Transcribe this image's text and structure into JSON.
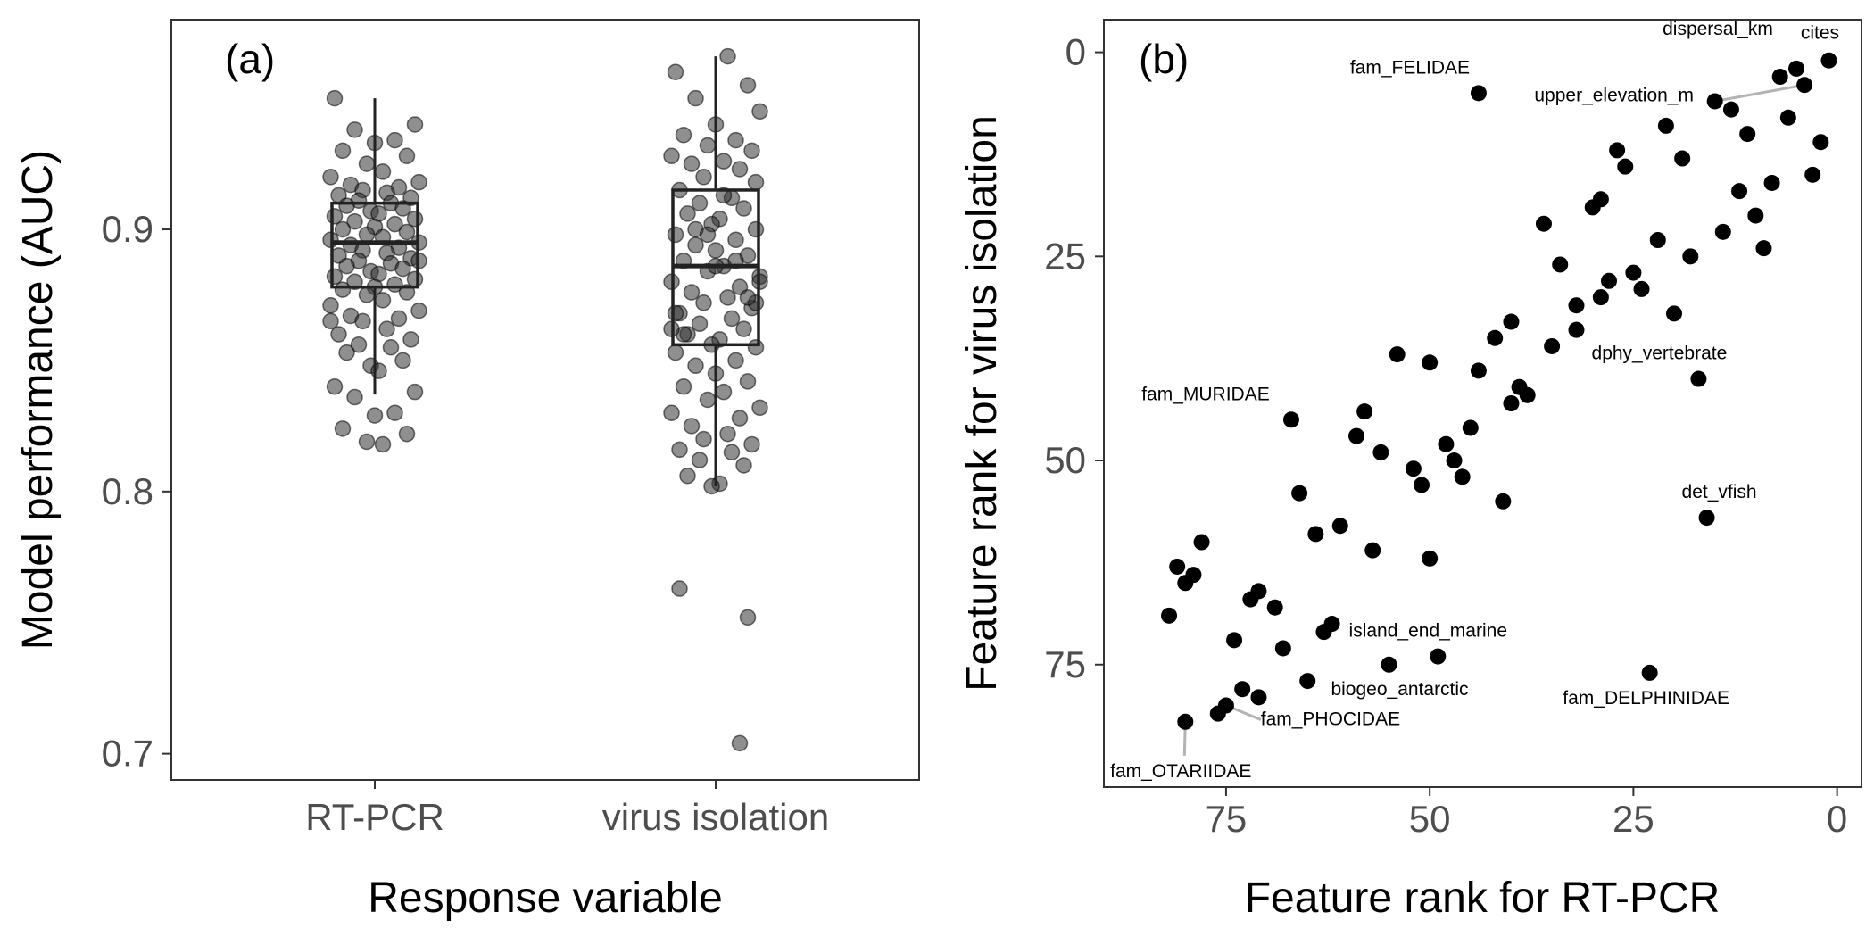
{
  "figure": {
    "colors": {
      "point_a": "#333333",
      "point_b": "#000000",
      "box": "#222222",
      "leader": "#b3b3b3",
      "tick": "#4d4d4d"
    }
  },
  "chart_data": [
    {
      "type": "box+jitter",
      "panel_label": "(a)",
      "xlabel": "Response variable",
      "ylabel": "Model performance (AUC)",
      "categories": [
        "RT-PCR",
        "virus isolation"
      ],
      "ylim": [
        0.69,
        0.98
      ],
      "yticks": [
        0.7,
        0.8,
        0.9
      ],
      "ytick_labels": [
        "0.7",
        "0.8",
        "0.9"
      ],
      "grid": false,
      "boxes": [
        {
          "category": "RT-PCR",
          "q1": 0.878,
          "median": 0.895,
          "q3": 0.91,
          "whisker_low": 0.837,
          "whisker_high": 0.95
        },
        {
          "category": "virus isolation",
          "q1": 0.856,
          "median": 0.886,
          "q3": 0.915,
          "whisker_low": 0.802,
          "whisker_high": 0.966
        }
      ],
      "points": [
        {
          "category": "RT-PCR",
          "offsets": [
            -0.1,
            0.1,
            -0.05,
            0.05,
            0.0,
            -0.08,
            0.08,
            -0.02,
            0.02,
            -0.11,
            0.11,
            -0.06,
            0.06,
            -0.03,
            0.03,
            -0.09,
            0.09,
            -0.04,
            0.04,
            -0.07,
            0.07,
            -0.01,
            0.01,
            -0.1,
            0.1,
            -0.05,
            0.05,
            0.0,
            -0.08,
            0.08,
            -0.02,
            0.02,
            -0.11,
            0.11,
            -0.06,
            0.06,
            -0.03,
            0.03,
            -0.09,
            0.09,
            -0.04,
            0.04,
            -0.07,
            0.07,
            -0.01,
            0.01,
            -0.1,
            0.1,
            -0.05,
            0.05,
            0.0,
            -0.08,
            0.08,
            -0.02,
            0.02,
            -0.11,
            0.11,
            -0.06,
            0.06,
            -0.03,
            0.03,
            -0.09,
            0.09,
            -0.04,
            0.04,
            -0.07,
            0.07,
            -0.01,
            0.01,
            -0.1,
            0.1,
            -0.05,
            0.05,
            0.0,
            -0.08,
            0.08,
            -0.02,
            0.02,
            -0.11,
            0.11
          ],
          "values": [
            0.95,
            0.94,
            0.938,
            0.934,
            0.933,
            0.93,
            0.928,
            0.925,
            0.922,
            0.92,
            0.918,
            0.917,
            0.916,
            0.915,
            0.914,
            0.913,
            0.912,
            0.911,
            0.91,
            0.909,
            0.908,
            0.907,
            0.906,
            0.905,
            0.904,
            0.903,
            0.902,
            0.901,
            0.9,
            0.899,
            0.898,
            0.897,
            0.896,
            0.895,
            0.894,
            0.893,
            0.892,
            0.891,
            0.89,
            0.889,
            0.888,
            0.887,
            0.886,
            0.885,
            0.884,
            0.883,
            0.882,
            0.881,
            0.88,
            0.879,
            0.878,
            0.877,
            0.876,
            0.875,
            0.873,
            0.871,
            0.869,
            0.867,
            0.866,
            0.865,
            0.862,
            0.86,
            0.858,
            0.856,
            0.855,
            0.853,
            0.85,
            0.848,
            0.846,
            0.84,
            0.838,
            0.836,
            0.83,
            0.829,
            0.824,
            0.822,
            0.819,
            0.818,
            0.865,
            0.888
          ]
        },
        {
          "category": "virus isolation",
          "offsets": [
            0.03,
            -0.1,
            0.08,
            -0.05,
            0.11,
            0.0,
            -0.08,
            0.05,
            -0.02,
            0.09,
            -0.11,
            0.02,
            -0.06,
            0.06,
            -0.03,
            0.1,
            -0.09,
            0.04,
            -0.04,
            0.07,
            -0.07,
            0.01,
            -0.01,
            0.1,
            -0.1,
            0.05,
            -0.05,
            0.0,
            0.08,
            -0.08,
            0.02,
            -0.02,
            0.11,
            -0.11,
            0.06,
            -0.06,
            0.03,
            -0.03,
            0.09,
            -0.09,
            0.04,
            -0.04,
            0.07,
            -0.07,
            0.01,
            -0.01,
            0.1,
            -0.1,
            0.05,
            -0.05,
            0.0,
            0.08,
            -0.08,
            0.02,
            -0.02,
            0.11,
            -0.11,
            0.06,
            -0.06,
            0.03,
            -0.03,
            0.09,
            -0.09,
            0.04,
            -0.04,
            0.07,
            -0.07,
            0.01,
            -0.01,
            0.1,
            -0.1,
            0.05,
            -0.05,
            0.0,
            0.08,
            -0.08,
            0.02,
            -0.02,
            0.11,
            -0.11,
            -0.09,
            0.08,
            0.06
          ],
          "values": [
            0.966,
            0.96,
            0.955,
            0.95,
            0.945,
            0.94,
            0.936,
            0.934,
            0.932,
            0.93,
            0.928,
            0.926,
            0.925,
            0.923,
            0.92,
            0.918,
            0.915,
            0.912,
            0.91,
            0.908,
            0.906,
            0.904,
            0.902,
            0.9,
            0.898,
            0.896,
            0.894,
            0.892,
            0.89,
            0.888,
            0.886,
            0.884,
            0.882,
            0.88,
            0.878,
            0.876,
            0.874,
            0.872,
            0.87,
            0.868,
            0.866,
            0.864,
            0.862,
            0.86,
            0.858,
            0.856,
            0.855,
            0.853,
            0.85,
            0.848,
            0.845,
            0.842,
            0.84,
            0.838,
            0.835,
            0.832,
            0.83,
            0.828,
            0.825,
            0.822,
            0.82,
            0.818,
            0.816,
            0.815,
            0.812,
            0.81,
            0.806,
            0.803,
            0.802,
            0.872,
            0.868,
            0.888,
            0.9,
            0.886,
            0.874,
            0.86,
            0.913,
            0.898,
            0.88,
            0.862,
            0.763,
            0.752,
            0.704
          ]
        }
      ]
    },
    {
      "type": "scatter",
      "panel_label": "(b)",
      "xlabel": "Feature rank for RT-PCR",
      "ylabel": "Feature rank for virus isolation",
      "xlim": [
        90,
        -3
      ],
      "ylim": [
        -4,
        90
      ],
      "x_reversed": true,
      "y_reversed": true,
      "xticks": [
        75,
        50,
        25,
        0
      ],
      "xtick_labels": [
        "75",
        "50",
        "25",
        "0"
      ],
      "yticks": [
        0,
        25,
        50,
        75
      ],
      "ytick_labels": [
        "0",
        "25",
        "50",
        "75"
      ],
      "grid": false,
      "points": [
        [
          1,
          1
        ],
        [
          4,
          4
        ],
        [
          5,
          2
        ],
        [
          7,
          3
        ],
        [
          15,
          6
        ],
        [
          13,
          7
        ],
        [
          11,
          10
        ],
        [
          21,
          9
        ],
        [
          19,
          13
        ],
        [
          27,
          12
        ],
        [
          26,
          14
        ],
        [
          2,
          11
        ],
        [
          3,
          15
        ],
        [
          6,
          8
        ],
        [
          8,
          16
        ],
        [
          10,
          20
        ],
        [
          12,
          17
        ],
        [
          14,
          22
        ],
        [
          9,
          24
        ],
        [
          18,
          25
        ],
        [
          22,
          23
        ],
        [
          29,
          18
        ],
        [
          30,
          19
        ],
        [
          36,
          21
        ],
        [
          34,
          26
        ],
        [
          25,
          27
        ],
        [
          24,
          29
        ],
        [
          28,
          28
        ],
        [
          32,
          31
        ],
        [
          29,
          30
        ],
        [
          20,
          32
        ],
        [
          32,
          34
        ],
        [
          35,
          36
        ],
        [
          40,
          33
        ],
        [
          42,
          35
        ],
        [
          44,
          39
        ],
        [
          39,
          41
        ],
        [
          38,
          42
        ],
        [
          40,
          43
        ],
        [
          50,
          38
        ],
        [
          54,
          37
        ],
        [
          45,
          46
        ],
        [
          48,
          48
        ],
        [
          47,
          50
        ],
        [
          46,
          52
        ],
        [
          52,
          51
        ],
        [
          51,
          53
        ],
        [
          56,
          49
        ],
        [
          59,
          47
        ],
        [
          58,
          44
        ],
        [
          61,
          58
        ],
        [
          64,
          59
        ],
        [
          66,
          54
        ],
        [
          57,
          61
        ],
        [
          41,
          55
        ],
        [
          50,
          62
        ],
        [
          67,
          45
        ],
        [
          17,
          40
        ],
        [
          16,
          57
        ],
        [
          23,
          76
        ],
        [
          44,
          5
        ],
        [
          49,
          74
        ],
        [
          55,
          75
        ],
        [
          62,
          70
        ],
        [
          63,
          71
        ],
        [
          65,
          77
        ],
        [
          68,
          73
        ],
        [
          69,
          68
        ],
        [
          71,
          66
        ],
        [
          72,
          67
        ],
        [
          74,
          72
        ],
        [
          73,
          78
        ],
        [
          71,
          79
        ],
        [
          75,
          80
        ],
        [
          76,
          81
        ],
        [
          80,
          82
        ],
        [
          78,
          60
        ],
        [
          79,
          64
        ],
        [
          81,
          63
        ],
        [
          80,
          65
        ],
        [
          82,
          69
        ]
      ],
      "annotations": [
        {
          "text": "cites",
          "x": 1,
          "y": 1
        },
        {
          "text": "dispersal_km",
          "x": 5,
          "y": 2
        },
        {
          "text": "upper_elevation_m",
          "x": 15,
          "y": 6
        },
        {
          "text": "fam_FELIDAE",
          "x": 44,
          "y": 5
        },
        {
          "text": "dphy_vertebrate",
          "x": 17,
          "y": 40
        },
        {
          "text": "fam_MURIDAE",
          "x": 67,
          "y": 45
        },
        {
          "text": "det_vfish",
          "x": 16,
          "y": 57
        },
        {
          "text": "island_end_marine",
          "x": 49,
          "y": 74
        },
        {
          "text": "biogeo_antarctic",
          "x": 55,
          "y": 75
        },
        {
          "text": "fam_DELPHINIDAE",
          "x": 23,
          "y": 76
        },
        {
          "text": "fam_PHOCIDAE",
          "x": 75,
          "y": 80
        },
        {
          "text": "fam_OTARIIDAE",
          "x": 80,
          "y": 82
        }
      ]
    }
  ]
}
